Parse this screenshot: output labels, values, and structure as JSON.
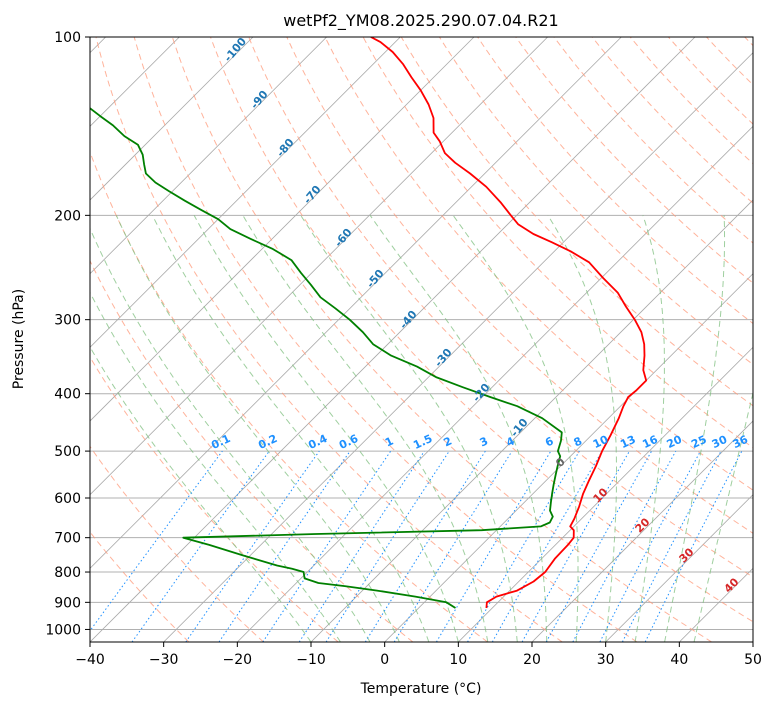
{
  "chart_data": {
    "type": "line",
    "title": "wetPf2_YM08.2025.290.07.04.R21",
    "xlabel": "Temperature (°C)",
    "ylabel": "Pressure (hPa)",
    "xlim": [
      -40,
      50
    ],
    "ylim": [
      1050,
      100
    ],
    "y_scale": "log",
    "x_ticks": [
      "−40",
      "−30",
      "−20",
      "−10",
      "0",
      "10",
      "20",
      "30",
      "40",
      "50"
    ],
    "x_tick_values": [
      -40,
      -30,
      -20,
      -10,
      0,
      10,
      20,
      30,
      40,
      50
    ],
    "y_ticks": [
      "100",
      "200",
      "300",
      "400",
      "500",
      "600",
      "700",
      "800",
      "900",
      "1000"
    ],
    "y_tick_values": [
      100,
      200,
      300,
      400,
      500,
      600,
      700,
      800,
      900,
      1000
    ],
    "grid": true,
    "skew": 45,
    "series": [
      {
        "name": "",
        "color": "#ff0000",
        "points": [
          [
            9.2,
            920
          ],
          [
            8.5,
            900
          ],
          [
            9,
            880
          ],
          [
            11,
            860
          ],
          [
            12,
            830
          ],
          [
            12.3,
            800
          ],
          [
            11.8,
            760
          ],
          [
            11.7,
            720
          ],
          [
            11.5,
            700
          ],
          [
            10.5,
            680
          ],
          [
            9.5,
            670
          ],
          [
            9,
            650
          ],
          [
            8,
            620
          ],
          [
            6.8,
            590
          ],
          [
            5.8,
            560
          ],
          [
            4.8,
            530
          ],
          [
            3.6,
            500
          ],
          [
            2.6,
            470
          ],
          [
            1.4,
            440
          ],
          [
            0.4,
            420
          ],
          [
            -0.2,
            405
          ],
          [
            0,
            395
          ],
          [
            0,
            380
          ],
          [
            -1.8,
            365
          ],
          [
            -3.6,
            345
          ],
          [
            -5.2,
            330
          ],
          [
            -7.2,
            315
          ],
          [
            -9.8,
            300
          ],
          [
            -12.8,
            285
          ],
          [
            -15.8,
            270
          ],
          [
            -19.8,
            255
          ],
          [
            -23.8,
            240
          ],
          [
            -27.8,
            230
          ],
          [
            -31.6,
            222
          ],
          [
            -35.2,
            215
          ],
          [
            -38.6,
            207
          ],
          [
            -40.8,
            200
          ],
          [
            -44,
            190
          ],
          [
            -48,
            179
          ],
          [
            -52,
            170
          ],
          [
            -55.5,
            163
          ],
          [
            -58.2,
            157
          ],
          [
            -60.5,
            150
          ],
          [
            -62.5,
            145
          ],
          [
            -64.5,
            137
          ],
          [
            -67,
            130
          ],
          [
            -70,
            123
          ],
          [
            -73,
            117
          ],
          [
            -76,
            111
          ],
          [
            -79,
            106
          ],
          [
            -82,
            102
          ],
          [
            -84,
            100
          ]
        ]
      },
      {
        "name": "",
        "color": "#008000",
        "points": [
          [
            5,
            920
          ],
          [
            3,
            900
          ],
          [
            -2,
            880
          ],
          [
            -8,
            860
          ],
          [
            -13,
            845
          ],
          [
            -17,
            835
          ],
          [
            -19.5,
            820
          ],
          [
            -20.5,
            800
          ],
          [
            -22.5,
            790
          ],
          [
            -25,
            780
          ],
          [
            -31,
            750
          ],
          [
            -37,
            720
          ],
          [
            -41.5,
            700
          ],
          [
            -24,
            690
          ],
          [
            -2,
            680
          ],
          [
            5.5,
            670
          ],
          [
            6.2,
            660
          ],
          [
            5.8,
            645
          ],
          [
            4.6,
            630
          ],
          [
            3.6,
            610
          ],
          [
            2.6,
            590
          ],
          [
            1.6,
            570
          ],
          [
            0.6,
            550
          ],
          [
            -0.4,
            530
          ],
          [
            -1.4,
            510
          ],
          [
            -2.4,
            500
          ],
          [
            -3.4,
            480
          ],
          [
            -4.4,
            465
          ],
          [
            -9,
            440
          ],
          [
            -14,
            420
          ],
          [
            -19,
            405
          ],
          [
            -24,
            390
          ],
          [
            -29,
            375
          ],
          [
            -33,
            360
          ],
          [
            -38,
            345
          ],
          [
            -42,
            330
          ],
          [
            -45,
            315
          ],
          [
            -48.5,
            300
          ],
          [
            -52,
            287
          ],
          [
            -55.5,
            275
          ],
          [
            -58.5,
            262
          ],
          [
            -61.5,
            250
          ],
          [
            -64.5,
            238
          ],
          [
            -68.5,
            228
          ],
          [
            -73,
            219
          ],
          [
            -77,
            211
          ],
          [
            -80,
            203
          ],
          [
            -83.5,
            196
          ],
          [
            -87,
            189
          ],
          [
            -90.5,
            182
          ],
          [
            -93.5,
            176
          ],
          [
            -96,
            170
          ],
          [
            -97.5,
            164
          ],
          [
            -99,
            158
          ],
          [
            -101,
            152
          ],
          [
            -104,
            147
          ],
          [
            -107,
            141
          ],
          [
            -110,
            136
          ],
          [
            -113,
            131
          ],
          [
            -116,
            126
          ],
          [
            -119,
            121
          ],
          [
            -122,
            116
          ],
          [
            -125,
            112
          ],
          [
            -128,
            108
          ],
          [
            -131,
            104
          ],
          [
            -133,
            102
          ],
          [
            -135,
            100
          ]
        ]
      }
    ],
    "mixing_ratio_labels": [
      "0.1",
      "0.2",
      "0.4",
      "0.6",
      "1",
      "1.5",
      "2",
      "3",
      "4",
      "6",
      "8",
      "10",
      "13",
      "16",
      "20",
      "25",
      "30",
      "36"
    ],
    "mixing_ratio_values": [
      0.1,
      0.2,
      0.4,
      0.6,
      1,
      1.5,
      2,
      3,
      4,
      6,
      8,
      10,
      13,
      16,
      20,
      25,
      30,
      36
    ],
    "dry_adiabat_labels": [
      "-100",
      "-90",
      "-80",
      "-70",
      "-60",
      "-50",
      "-40",
      "-30",
      "-20",
      "-10"
    ],
    "moist_adiabat_labels": [
      "0",
      "10",
      "20",
      "30",
      "40"
    ],
    "colors": {
      "temperature": "#ff0000",
      "dewpoint": "#008000",
      "isotherm": "#a9a9a9",
      "dry_adiabat": "#ff9a7a",
      "moist_adiabat": "#7fbf7f",
      "mixing_ratio": "#1e90ff",
      "dry_adiabat_label": "#1f77b4",
      "moist_adiabat_label": "#d62728",
      "zero_label": "#666666"
    }
  }
}
